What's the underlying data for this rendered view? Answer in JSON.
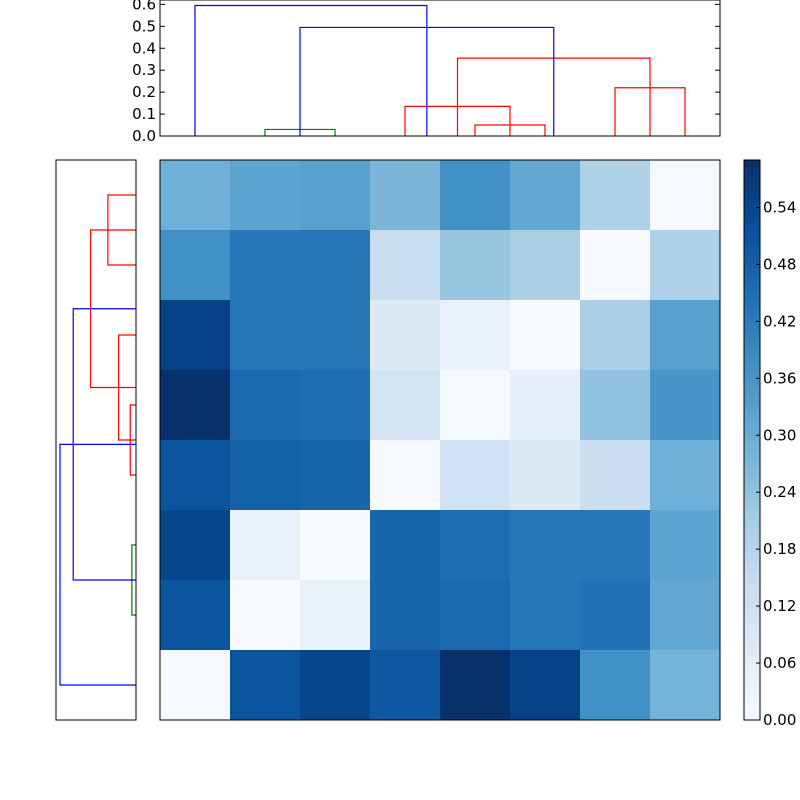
{
  "chart_data": [
    {
      "type": "dendrogram",
      "orientation": "top",
      "ylim": [
        0,
        0.62
      ],
      "yticks": [
        "0.0",
        "0.1",
        "0.2",
        "0.3",
        "0.4",
        "0.5",
        "0.6"
      ],
      "leaf_count": 8,
      "links": [
        {
          "left": 2.0,
          "right": 3.0,
          "height": 0.03,
          "color": "#008000"
        },
        {
          "left": 5.0,
          "right": 6.0,
          "height": 0.05,
          "color": "#ff0000"
        },
        {
          "left": 4.0,
          "right": 5.5,
          "height": 0.135,
          "color": "#ff0000"
        },
        {
          "left": 7.0,
          "right": 8.0,
          "height": 0.22,
          "color": "#ff0000"
        },
        {
          "left": 4.75,
          "right": 7.5,
          "height": 0.355,
          "color": "#ff0000"
        },
        {
          "left": 2.5,
          "right": 6.125,
          "height": 0.495,
          "color": "#0000ff"
        },
        {
          "left": 1.0,
          "right": 4.3125,
          "height": 0.595,
          "color": "#0000ff"
        }
      ]
    },
    {
      "type": "dendrogram",
      "orientation": "left",
      "leaf_count": 8,
      "links": [
        {
          "left": 1.0,
          "right": 2.0,
          "height": 0.17,
          "color": "#ff0000"
        },
        {
          "left": 4.0,
          "right": 5.0,
          "height": 0.035,
          "color": "#ff0000"
        },
        {
          "left": 3.0,
          "right": 4.5,
          "height": 0.105,
          "color": "#ff0000"
        },
        {
          "left": 1.5,
          "right": 3.75,
          "height": 0.275,
          "color": "#ff0000"
        },
        {
          "left": 6.0,
          "right": 7.0,
          "height": 0.025,
          "color": "#008000"
        },
        {
          "left": 2.625,
          "right": 6.5,
          "height": 0.38,
          "color": "#0000ff"
        },
        {
          "left": 4.5625,
          "right": 8.0,
          "height": 0.46,
          "color": "#0000ff"
        }
      ]
    },
    {
      "type": "heatmap",
      "colormap": "Blues",
      "rows": 8,
      "cols": 8,
      "values": [
        [
          0.29,
          0.32,
          0.33,
          0.27,
          0.37,
          0.31,
          0.19,
          0.01
        ],
        [
          0.37,
          0.43,
          0.43,
          0.14,
          0.23,
          0.2,
          0.0,
          0.19
        ],
        [
          0.55,
          0.43,
          0.43,
          0.08,
          0.04,
          0.0,
          0.2,
          0.33
        ],
        [
          0.59,
          0.46,
          0.45,
          0.11,
          0.01,
          0.05,
          0.24,
          0.36
        ],
        [
          0.51,
          0.48,
          0.47,
          0.0,
          0.12,
          0.08,
          0.13,
          0.29
        ],
        [
          0.54,
          0.04,
          0.0,
          0.47,
          0.45,
          0.43,
          0.43,
          0.32
        ],
        [
          0.51,
          0.0,
          0.04,
          0.47,
          0.46,
          0.43,
          0.44,
          0.31
        ],
        [
          0.0,
          0.51,
          0.54,
          0.5,
          0.59,
          0.55,
          0.37,
          0.28
        ]
      ]
    },
    {
      "type": "colorbar",
      "colormap": "Blues",
      "range": [
        0,
        0.59
      ],
      "ticks": [
        "0.00",
        "0.06",
        "0.12",
        "0.18",
        "0.24",
        "0.30",
        "0.36",
        "0.42",
        "0.48",
        "0.54"
      ]
    }
  ]
}
